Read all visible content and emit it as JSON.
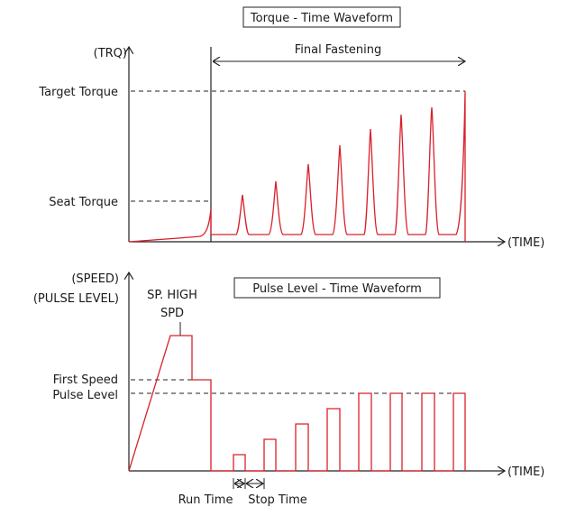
{
  "torque_chart": {
    "title": "Torque - Time Waveform",
    "y_axis_label": "(TRQ)",
    "x_axis_label": "(TIME)",
    "final_fastening_label": "Final Fastening",
    "levels": {
      "target_torque": "Target Torque",
      "seat_torque": "Seat Torque"
    }
  },
  "pulse_chart": {
    "title": "Pulse Level - Time Waveform",
    "y_axis_label_line1": "(SPEED)",
    "y_axis_label_line2": "(PULSE LEVEL)",
    "x_axis_label": "(TIME)",
    "sp_high_label_line1": "SP. HIGH",
    "sp_high_label_line2": "SPD",
    "levels": {
      "first_speed": "First Speed",
      "pulse_level": "Pulse Level"
    },
    "run_time_label": "Run Time",
    "stop_time_label": "Stop Time"
  },
  "colors": {
    "waveform": "#d8202a",
    "lines": "#222222"
  }
}
